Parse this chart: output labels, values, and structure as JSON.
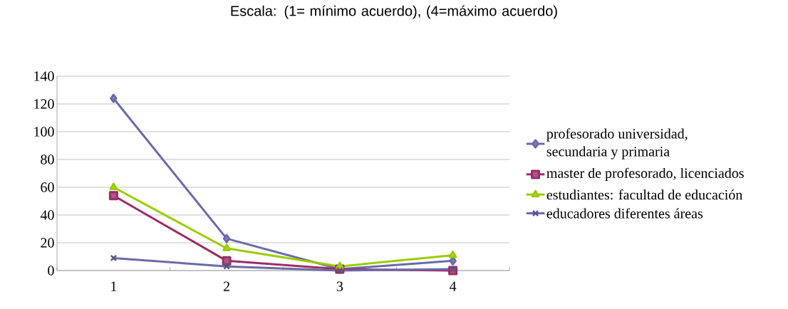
{
  "chart_data": {
    "type": "line",
    "title": "Escala: (1= mínimo acuerdo),  (4=máximo acuerdo)",
    "categories": [
      "1",
      "2",
      "3",
      "4"
    ],
    "series": [
      {
        "name": "profesorado universidad, secundaria y primaria",
        "color": "#6a6aa8",
        "marker": "diamond",
        "values": [
          124,
          23,
          1,
          7
        ]
      },
      {
        "name": "master de profesorado, licenciados",
        "color": "#9b2d66",
        "marker": "square",
        "values": [
          54,
          7,
          1,
          0
        ]
      },
      {
        "name": "estudiantes: facultad de educación",
        "color": "#99cc00",
        "marker": "triangle",
        "values": [
          60,
          16,
          3,
          11
        ]
      },
      {
        "name": "educadores diferentes áreas",
        "color": "#6a6aa8",
        "marker": "cross",
        "values": [
          9,
          3,
          0,
          1
        ]
      }
    ],
    "ylim": [
      0,
      140
    ],
    "yticks": [
      0,
      20,
      40,
      60,
      80,
      100,
      120,
      140
    ],
    "grid": "y",
    "legend": "right",
    "line_style": "solid"
  }
}
